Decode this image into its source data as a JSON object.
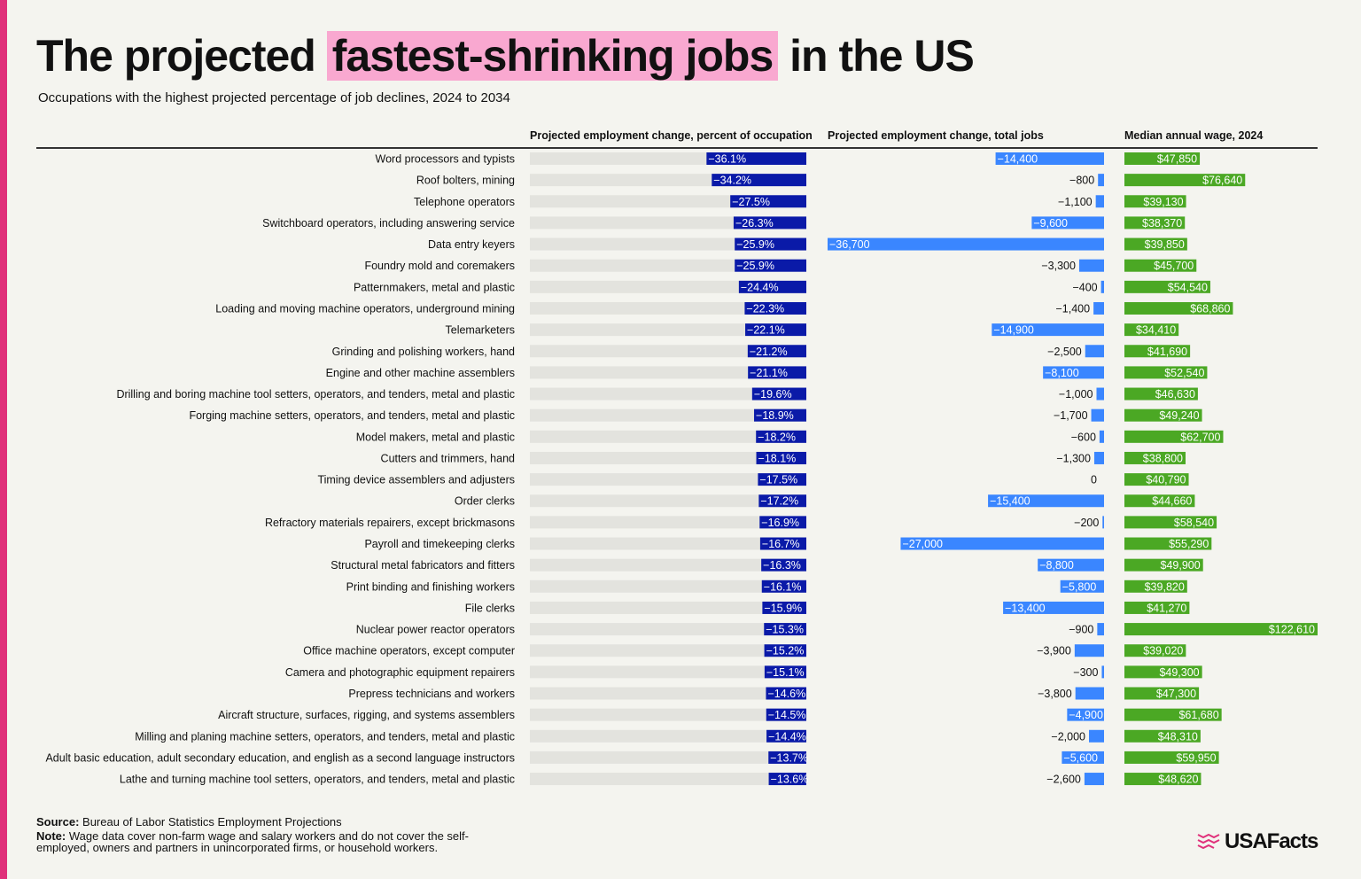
{
  "title_pre": "The projected ",
  "title_highlight": "fastest-shrinking jobs",
  "title_post": " in the US",
  "subtitle": "Occupations with the highest projected percentage of job declines, 2024 to 2034",
  "source_label": "Source:",
  "source": " Bureau of Labor Statistics Employment Projections",
  "note_label": "Note:",
  "note": " Wage data cover non-farm wage and salary workers and do not cover the self-employed, owners and partners in unincorporated firms, or household workers.",
  "logo": "USAFacts",
  "colors": {
    "accent": "#e0307a",
    "highlight": "#f9a8d0",
    "percent": "#0a1aa8",
    "jobs": "#3a86ff",
    "wage": "#4ba824",
    "track": "#e3e3de"
  },
  "chart_data": {
    "type": "bar",
    "columns": [
      "Projected employment change, percent of occupation",
      "Projected employment change, total jobs",
      "Median annual wage, 2024"
    ],
    "percent_range": [
      -100,
      0
    ],
    "categories": [
      "Word processors and typists",
      "Roof bolters, mining",
      "Telephone operators",
      "Switchboard operators, including answering service",
      "Data entry keyers",
      "Foundry mold and coremakers",
      "Patternmakers, metal and plastic",
      "Loading and moving machine operators, underground mining",
      "Telemarketers",
      "Grinding and polishing workers, hand",
      "Engine and other machine assemblers",
      "Drilling and boring machine tool setters, operators, and tenders, metal and plastic",
      "Forging machine setters, operators, and tenders, metal and plastic",
      "Model makers, metal and plastic",
      "Cutters and trimmers, hand",
      "Timing device assemblers and adjusters",
      "Order clerks",
      "Refractory materials repairers, except brickmasons",
      "Payroll and timekeeping clerks",
      "Structural metal fabricators and fitters",
      "Print binding and finishing workers",
      "File clerks",
      "Nuclear power reactor operators",
      "Office machine operators, except computer",
      "Camera and photographic equipment repairers",
      "Prepress technicians and workers",
      "Aircraft structure, surfaces, rigging, and systems assemblers",
      "Milling and planing machine setters, operators, and tenders, metal and plastic",
      "Adult basic education, adult secondary education, and english as a second language instructors",
      "Lathe and turning machine tool setters, operators, and tenders, metal and plastic"
    ],
    "percent": [
      -36.1,
      -34.2,
      -27.5,
      -26.3,
      -25.9,
      -25.9,
      -24.4,
      -22.3,
      -22.1,
      -21.2,
      -21.1,
      -19.6,
      -18.9,
      -18.2,
      -18.1,
      -17.5,
      -17.2,
      -16.9,
      -16.7,
      -16.3,
      -16.1,
      -15.9,
      -15.3,
      -15.2,
      -15.1,
      -14.6,
      -14.5,
      -14.4,
      -13.7,
      -13.6
    ],
    "total_jobs": [
      -14400,
      -800,
      -1100,
      -9600,
      -36700,
      -3300,
      -400,
      -1400,
      -14900,
      -2500,
      -8100,
      -1000,
      -1700,
      -600,
      -1300,
      0,
      -15400,
      -200,
      -27000,
      -8800,
      -5800,
      -13400,
      -900,
      -3900,
      -300,
      -3800,
      -4900,
      -2000,
      -5600,
      -2600
    ],
    "wage": [
      47850,
      76640,
      39130,
      38370,
      39850,
      45700,
      54540,
      68860,
      34410,
      41690,
      52540,
      46630,
      49240,
      62700,
      38800,
      40790,
      44660,
      58540,
      55290,
      49900,
      39820,
      41270,
      122610,
      39020,
      49300,
      47300,
      61680,
      48310,
      59950,
      48620
    ]
  }
}
